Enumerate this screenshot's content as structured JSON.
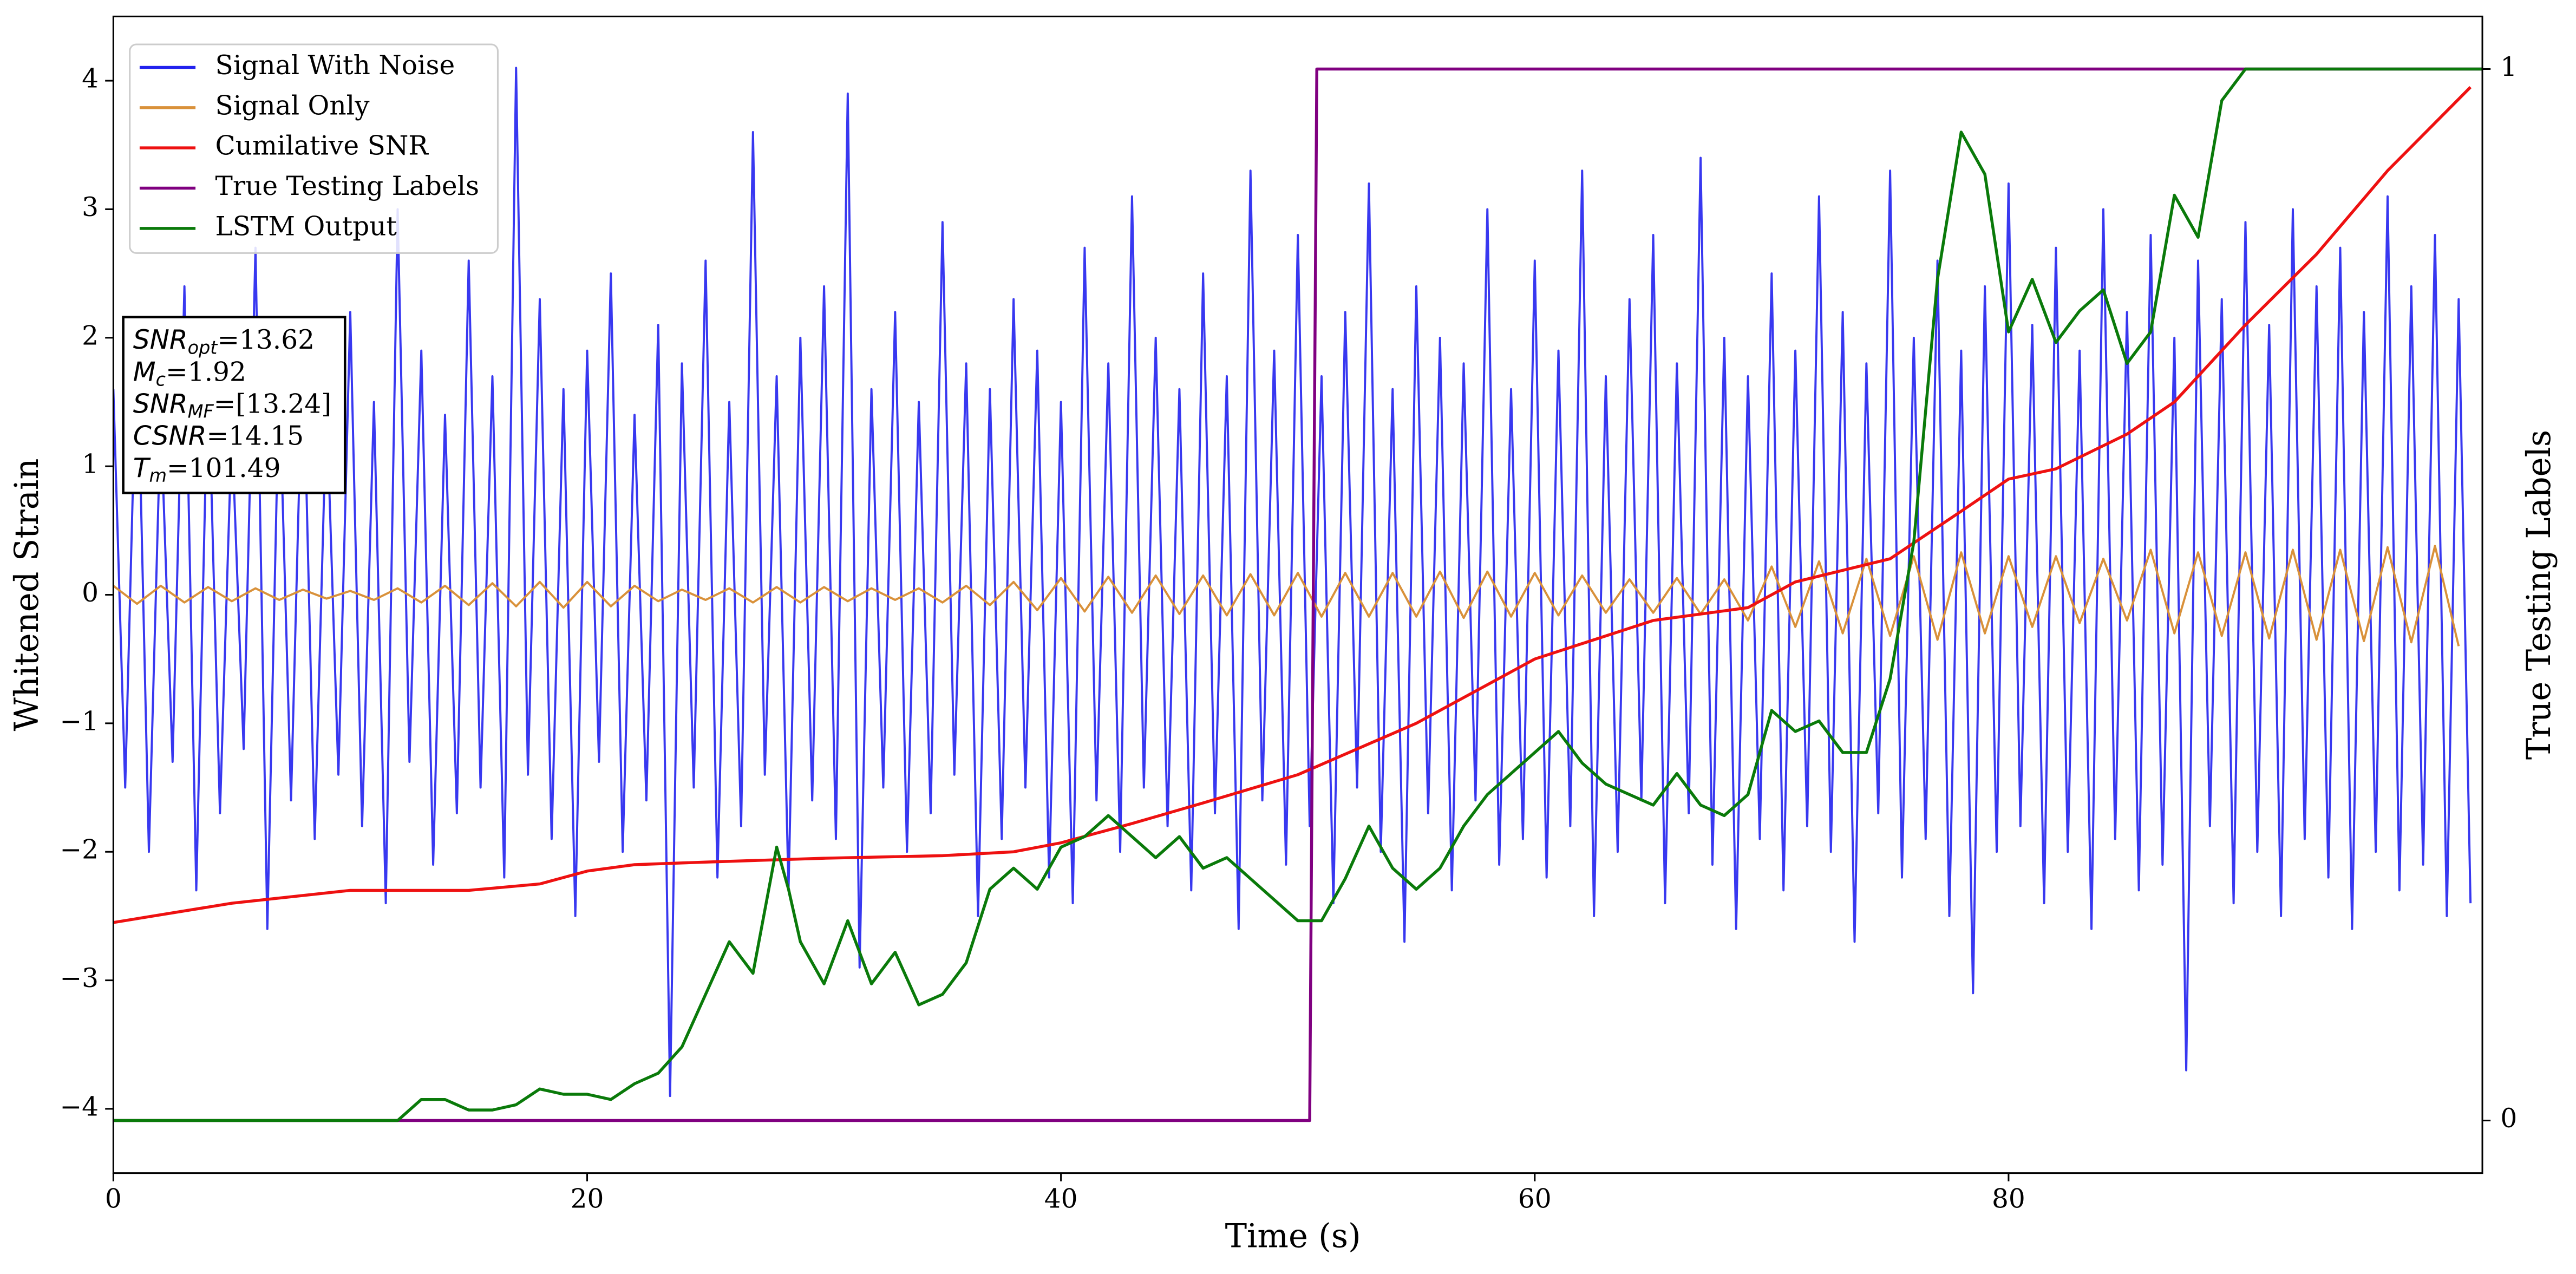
{
  "chart_data": {
    "type": "line",
    "xlabel": "Time (s)",
    "ylabel": "Whitened Strain",
    "y2label": "True Testing Labels",
    "xlim": [
      0,
      100
    ],
    "xticks": [
      0,
      20,
      40,
      60,
      80
    ],
    "ylim": [
      -4.5,
      4.5
    ],
    "yticks": [
      {
        "value": -4,
        "label": "−4"
      },
      {
        "value": -3,
        "label": "−3"
      },
      {
        "value": -2,
        "label": "−2"
      },
      {
        "value": -1,
        "label": "−1"
      },
      0,
      1,
      2,
      3,
      4
    ],
    "y2lim": [
      -0.05,
      1.05
    ],
    "y2ticks": [
      0,
      1
    ],
    "grid": false,
    "legend": "upper left",
    "series": [
      {
        "name": "Signal With Noise",
        "color": "#2222ee",
        "axis": "y",
        "x": [
          0,
          0.5,
          1,
          1.5,
          2,
          2.5,
          3,
          3.5,
          4,
          4.5,
          5,
          5.5,
          6,
          6.5,
          7,
          7.5,
          8,
          8.5,
          9,
          9.5,
          10,
          10.5,
          11,
          11.5,
          12,
          12.5,
          13,
          13.5,
          14,
          14.5,
          15,
          15.5,
          16,
          16.5,
          17,
          17.5,
          18,
          18.5,
          19,
          19.5,
          20,
          20.5,
          21,
          21.5,
          22,
          22.5,
          23,
          23.5,
          24,
          24.5,
          25,
          25.5,
          26,
          26.5,
          27,
          27.5,
          28,
          28.5,
          29,
          29.5,
          30,
          30.5,
          31,
          31.5,
          32,
          32.5,
          33,
          33.5,
          34,
          34.5,
          35,
          35.5,
          36,
          36.5,
          37,
          37.5,
          38,
          38.5,
          39,
          39.5,
          40,
          40.5,
          41,
          41.5,
          42,
          42.5,
          43,
          43.5,
          44,
          44.5,
          45,
          45.5,
          46,
          46.5,
          47,
          47.5,
          48,
          48.5,
          49,
          49.5,
          50,
          50.5,
          51,
          51.5,
          52,
          52.5,
          53,
          53.5,
          54,
          54.5,
          55,
          55.5,
          56,
          56.5,
          57,
          57.5,
          58,
          58.5,
          59,
          59.5,
          60,
          60.5,
          61,
          61.5,
          62,
          62.5,
          63,
          63.5,
          64,
          64.5,
          65,
          65.5,
          66,
          66.5,
          67,
          67.5,
          68,
          68.5,
          69,
          69.5,
          70,
          70.5,
          71,
          71.5,
          72,
          72.5,
          73,
          73.5,
          74,
          74.5,
          75,
          75.5,
          76,
          76.5,
          77,
          77.5,
          78,
          78.5,
          79,
          79.5,
          80,
          80.5,
          81,
          81.5,
          82,
          82.5,
          83,
          83.5,
          84,
          84.5,
          85,
          85.5,
          86,
          86.5,
          87,
          87.5,
          88,
          88.5,
          89,
          89.5,
          90,
          90.5,
          91,
          91.5,
          92,
          92.5,
          93,
          93.5,
          94,
          94.5,
          95,
          95.5,
          96,
          96.5,
          97,
          97.5,
          98,
          98.5,
          99,
          99.5
        ],
        "values": [
          1.6,
          -1.5,
          2.1,
          -2.0,
          1.4,
          -1.3,
          2.4,
          -2.3,
          1.8,
          -1.7,
          1.3,
          -1.2,
          2.7,
          -2.6,
          1.7,
          -1.6,
          2.0,
          -1.9,
          1.5,
          -1.4,
          2.2,
          -1.8,
          1.5,
          -2.4,
          3.0,
          -1.3,
          1.9,
          -2.1,
          1.4,
          -1.7,
          2.6,
          -1.5,
          1.7,
          -2.2,
          4.1,
          -1.4,
          2.3,
          -1.9,
          1.6,
          -2.5,
          1.9,
          -1.3,
          2.5,
          -2.0,
          1.4,
          -1.6,
          2.1,
          -3.9,
          1.8,
          -1.5,
          2.6,
          -2.2,
          1.5,
          -1.8,
          3.6,
          -1.4,
          1.7,
          -2.3,
          2.0,
          -1.6,
          2.4,
          -1.9,
          3.9,
          -2.9,
          1.6,
          -1.5,
          2.2,
          -2.0,
          1.5,
          -1.7,
          2.9,
          -1.4,
          1.8,
          -2.5,
          1.6,
          -1.9,
          2.3,
          -1.5,
          1.9,
          -2.2,
          1.5,
          -2.4,
          2.7,
          -1.6,
          1.8,
          -2.0,
          3.1,
          -1.5,
          2.0,
          -1.8,
          1.6,
          -2.3,
          2.5,
          -1.7,
          1.7,
          -2.6,
          3.3,
          -1.6,
          1.9,
          -2.1,
          2.8,
          -1.8,
          1.7,
          -2.4,
          2.2,
          -1.5,
          3.2,
          -2.0,
          1.6,
          -2.7,
          2.4,
          -1.7,
          2.0,
          -2.3,
          1.8,
          -1.6,
          3.0,
          -2.1,
          1.6,
          -1.9,
          2.6,
          -2.2,
          1.9,
          -1.8,
          3.3,
          -2.5,
          1.7,
          -2.0,
          2.3,
          -1.6,
          2.8,
          -2.4,
          1.8,
          -1.7,
          3.4,
          -2.1,
          2.0,
          -2.6,
          1.7,
          -1.9,
          2.5,
          -2.3,
          1.9,
          -1.8,
          3.1,
          -2.0,
          2.2,
          -2.7,
          1.8,
          -1.7,
          3.3,
          -2.2,
          2.0,
          -1.9,
          2.6,
          -2.5,
          1.9,
          -3.1,
          2.4,
          -2.0,
          3.2,
          -1.8,
          2.1,
          -2.4,
          2.7,
          -2.0,
          1.9,
          -2.6,
          3.0,
          -1.9,
          2.2,
          -2.3,
          2.8,
          -2.1,
          2.0,
          -3.7,
          2.6,
          -1.8,
          2.3,
          -2.4,
          2.9,
          -2.0,
          2.1,
          -2.5,
          3.0,
          -1.9,
          2.4,
          -2.2,
          2.7,
          -2.6,
          2.2,
          -2.0,
          3.1,
          -2.3,
          2.4,
          -2.1,
          2.8,
          -2.5,
          2.3,
          -2.4
        ]
      },
      {
        "name": "Signal Only",
        "color": "#d9913a",
        "axis": "y",
        "x": [
          0,
          1,
          2,
          3,
          4,
          5,
          6,
          7,
          8,
          9,
          10,
          11,
          12,
          13,
          14,
          15,
          16,
          17,
          18,
          19,
          20,
          21,
          22,
          23,
          24,
          25,
          26,
          27,
          28,
          29,
          30,
          31,
          32,
          33,
          34,
          35,
          36,
          37,
          38,
          39,
          40,
          41,
          42,
          43,
          44,
          45,
          46,
          47,
          48,
          49,
          50,
          51,
          52,
          53,
          54,
          55,
          56,
          57,
          58,
          59,
          60,
          61,
          62,
          63,
          64,
          65,
          66,
          67,
          68,
          69,
          70,
          71,
          72,
          73,
          74,
          75,
          76,
          77,
          78,
          79,
          80,
          81,
          82,
          83,
          84,
          85,
          86,
          87,
          88,
          89,
          90,
          91,
          92,
          93,
          94,
          95,
          96,
          97,
          98,
          99
        ],
        "values": [
          0.07,
          -0.07,
          0.07,
          -0.06,
          0.06,
          -0.05,
          0.05,
          -0.04,
          0.04,
          -0.03,
          0.03,
          -0.04,
          0.05,
          -0.06,
          0.07,
          -0.08,
          0.09,
          -0.09,
          0.1,
          -0.1,
          0.1,
          -0.09,
          0.07,
          -0.05,
          0.04,
          -0.04,
          0.05,
          -0.06,
          0.06,
          -0.06,
          0.06,
          -0.05,
          0.05,
          -0.04,
          0.05,
          -0.06,
          0.07,
          -0.08,
          0.1,
          -0.12,
          0.13,
          -0.13,
          0.14,
          -0.14,
          0.15,
          -0.15,
          0.15,
          -0.16,
          0.16,
          -0.16,
          0.17,
          -0.17,
          0.17,
          -0.17,
          0.17,
          -0.17,
          0.18,
          -0.18,
          0.18,
          -0.17,
          0.17,
          -0.16,
          0.15,
          -0.14,
          0.12,
          -0.14,
          0.13,
          -0.15,
          0.12,
          -0.2,
          0.22,
          -0.25,
          0.26,
          -0.3,
          0.28,
          -0.32,
          0.3,
          -0.35,
          0.33,
          -0.3,
          0.3,
          -0.25,
          0.3,
          -0.22,
          0.28,
          -0.2,
          0.35,
          -0.3,
          0.33,
          -0.32,
          0.33,
          -0.34,
          0.35,
          -0.35,
          0.35,
          -0.36,
          0.37,
          -0.37,
          0.38,
          -0.4
        ]
      },
      {
        "name": "Cumilative SNR",
        "color": "#ee1111",
        "axis": "y",
        "x": [
          0,
          5,
          10,
          15,
          18,
          20,
          22,
          25,
          30,
          35,
          38,
          40,
          43,
          46,
          50,
          55,
          60,
          65,
          69,
          71,
          75,
          78,
          80,
          82,
          85,
          87,
          90,
          93,
          96,
          99.5
        ],
        "values": [
          -2.55,
          -2.4,
          -2.3,
          -2.3,
          -2.25,
          -2.15,
          -2.1,
          -2.08,
          -2.05,
          -2.03,
          -2.0,
          -1.93,
          -1.78,
          -1.62,
          -1.4,
          -1.0,
          -0.5,
          -0.2,
          -0.1,
          0.1,
          0.28,
          0.65,
          0.9,
          0.98,
          1.25,
          1.5,
          2.1,
          2.65,
          3.3,
          3.95
        ]
      },
      {
        "name": "True Testing Labels",
        "color": "#800080",
        "axis": "y2",
        "x": [
          0,
          50.5,
          50.8,
          100
        ],
        "values": [
          0,
          0,
          1,
          1
        ]
      },
      {
        "name": "LSTM Output",
        "color": "#0a7a0a",
        "axis": "y2",
        "x": [
          0,
          12,
          13,
          14,
          15,
          16,
          17,
          18,
          19,
          20,
          21,
          22,
          23,
          24,
          25,
          26,
          27,
          28,
          28.5,
          29,
          30,
          31,
          32,
          33,
          34,
          35,
          36,
          37,
          38,
          39,
          40,
          41,
          42,
          43,
          44,
          45,
          46,
          47,
          48,
          49,
          50,
          51,
          52,
          53,
          54,
          55,
          56,
          57,
          58,
          59,
          60,
          61,
          62,
          63,
          64,
          65,
          66,
          67,
          68,
          69,
          70,
          71,
          72,
          73,
          74,
          75,
          76,
          77,
          78,
          79,
          80,
          81,
          82,
          83,
          84,
          85,
          86,
          87,
          88,
          89,
          90,
          100
        ],
        "values": [
          0,
          0,
          0.02,
          0.02,
          0.01,
          0.01,
          0.015,
          0.03,
          0.025,
          0.025,
          0.02,
          0.035,
          0.045,
          0.07,
          0.12,
          0.17,
          0.14,
          0.26,
          0.22,
          0.17,
          0.13,
          0.19,
          0.13,
          0.16,
          0.11,
          0.12,
          0.15,
          0.22,
          0.24,
          0.22,
          0.26,
          0.27,
          0.29,
          0.27,
          0.25,
          0.27,
          0.24,
          0.25,
          0.23,
          0.21,
          0.19,
          0.19,
          0.23,
          0.28,
          0.24,
          0.22,
          0.24,
          0.28,
          0.31,
          0.33,
          0.35,
          0.37,
          0.34,
          0.32,
          0.31,
          0.3,
          0.33,
          0.3,
          0.29,
          0.31,
          0.39,
          0.37,
          0.38,
          0.35,
          0.35,
          0.42,
          0.55,
          0.8,
          0.94,
          0.9,
          0.75,
          0.8,
          0.74,
          0.77,
          0.79,
          0.72,
          0.75,
          0.88,
          0.84,
          0.97,
          1.0,
          1.0
        ]
      }
    ],
    "annotation": {
      "lines": [
        {
          "main": "SNR",
          "sub": "opt",
          "rest": "=13.62"
        },
        {
          "main": "M",
          "sub": "c",
          "rest": "=1.92"
        },
        {
          "main": "SNR",
          "sub": "MF",
          "rest": "=[13.24]"
        },
        {
          "main": "CSNR",
          "rest": "=14.15"
        },
        {
          "main": "T",
          "sub": "m",
          "rest": "=101.49"
        }
      ]
    }
  }
}
